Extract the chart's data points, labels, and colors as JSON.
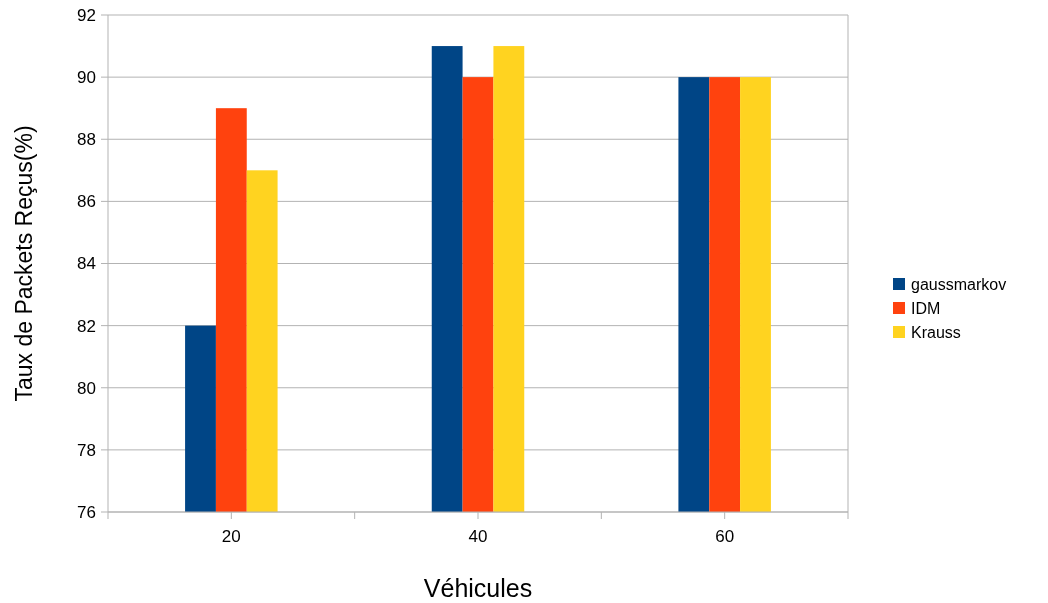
{
  "chart_data": {
    "type": "bar",
    "xlabel": "Véhicules",
    "ylabel": "Taux de Packets Reçus(%)",
    "categories": [
      "20",
      "40",
      "60"
    ],
    "series": [
      {
        "name": "gaussmarkov",
        "color": "#004586",
        "values": [
          82,
          91,
          90
        ]
      },
      {
        "name": "IDM",
        "color": "#ff420e",
        "values": [
          89,
          90,
          90
        ]
      },
      {
        "name": "Krauss",
        "color": "#ffd320",
        "values": [
          87,
          91,
          90
        ]
      }
    ],
    "ylim": [
      76,
      92
    ],
    "yticks": [
      76,
      78,
      80,
      82,
      84,
      86,
      88,
      90,
      92
    ],
    "grid": "y",
    "legend": "right"
  }
}
